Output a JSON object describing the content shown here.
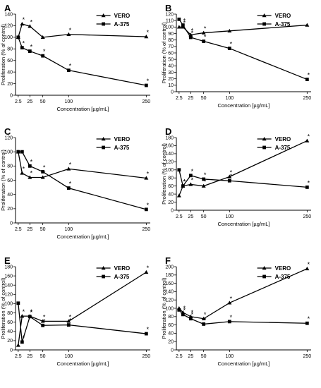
{
  "chart_data": [
    {
      "type": "line",
      "panel": "A",
      "xlabel": "Concentration [µg/mL]",
      "ylabel": "Proliferation (% of control)",
      "ylim": [
        0,
        140
      ],
      "yticks": [
        0,
        20,
        40,
        60,
        80,
        100,
        120,
        140
      ],
      "x": [
        2.5,
        10,
        25,
        50,
        100,
        250
      ],
      "xticks": [
        "2.5",
        "25",
        "50",
        "100",
        "250"
      ],
      "series": [
        {
          "name": "VERO",
          "marker": "triangle",
          "values": [
            100,
            123,
            119,
            100,
            105,
            101
          ],
          "stars": [
            false,
            true,
            true,
            false,
            true,
            true
          ]
        },
        {
          "name": "A-375",
          "marker": "square",
          "values": [
            100,
            82,
            76,
            68,
            43,
            17
          ],
          "stars": [
            false,
            true,
            true,
            true,
            true,
            true
          ]
        }
      ],
      "legend": "top-right"
    },
    {
      "type": "line",
      "panel": "B",
      "xlabel": "Concentration [µg/mL]",
      "ylabel": "Proliferation (% of control)",
      "ylim": [
        0,
        120
      ],
      "yticks": [
        0,
        10,
        20,
        30,
        40,
        50,
        60,
        70,
        80,
        90,
        100,
        110,
        120
      ],
      "x": [
        2.5,
        10,
        25,
        50,
        100,
        250
      ],
      "xticks": [
        "2.5",
        "25",
        "50",
        "100",
        "250"
      ],
      "series": [
        {
          "name": "VERO",
          "marker": "triangle",
          "values": [
            100,
            100,
            88,
            91,
            94,
            103
          ],
          "stars": [
            false,
            true,
            true,
            true,
            false,
            false
          ]
        },
        {
          "name": "A-375",
          "marker": "square",
          "values": [
            112,
            103,
            84,
            78,
            67,
            19
          ],
          "stars": [
            false,
            true,
            true,
            true,
            true,
            true
          ]
        }
      ],
      "legend": "top-right"
    },
    {
      "type": "line",
      "panel": "C",
      "xlabel": "Concentration [µg/mL]",
      "ylabel": "Proliferation (% of control)",
      "ylim": [
        0,
        120
      ],
      "yticks": [
        0,
        20,
        40,
        60,
        80,
        100,
        120
      ],
      "x": [
        2.5,
        10,
        25,
        50,
        100,
        250
      ],
      "xticks": [
        "2.5",
        "25",
        "50",
        "100",
        "250"
      ],
      "series": [
        {
          "name": "VERO",
          "marker": "triangle",
          "values": [
            100,
            70,
            64,
            64,
            76,
            63
          ],
          "stars": [
            false,
            true,
            true,
            true,
            true,
            true
          ]
        },
        {
          "name": "A-375",
          "marker": "square",
          "values": [
            100,
            100,
            80,
            72,
            49,
            19
          ],
          "stars": [
            false,
            false,
            true,
            true,
            true,
            true
          ]
        }
      ],
      "legend": "top-right"
    },
    {
      "type": "line",
      "panel": "D",
      "xlabel": "Concentration [µg/mL]",
      "ylabel": "Proliferation (% of control)",
      "ylim": [
        0,
        180
      ],
      "yticks": [
        0,
        20,
        40,
        60,
        80,
        100,
        120,
        140,
        160,
        180
      ],
      "x": [
        2.5,
        10,
        25,
        50,
        100,
        250
      ],
      "xticks": [
        "2.5",
        "25",
        "50",
        "100",
        "250"
      ],
      "series": [
        {
          "name": "VERO",
          "marker": "triangle",
          "values": [
            36,
            60,
            64,
            60,
            83,
            172
          ],
          "stars": [
            false,
            true,
            true,
            true,
            true,
            true
          ]
        },
        {
          "name": "A-375",
          "marker": "square",
          "values": [
            100,
            60,
            86,
            77,
            73,
            57
          ],
          "stars": [
            false,
            true,
            true,
            true,
            true,
            true
          ]
        }
      ],
      "legend": "top-right"
    },
    {
      "type": "line",
      "panel": "E",
      "xlabel": "Concentration [µg/mL]",
      "ylabel": "Proliferation (% of control)",
      "ylim": [
        0,
        180
      ],
      "yticks": [
        0,
        20,
        40,
        60,
        80,
        100,
        120,
        140,
        160,
        180
      ],
      "x": [
        2.5,
        10,
        25,
        50,
        100,
        250
      ],
      "xticks": [
        "2.5",
        "25",
        "50",
        "100",
        "250"
      ],
      "series": [
        {
          "name": "VERO",
          "marker": "triangle",
          "values": [
            10,
            73,
            73,
            62,
            62,
            168
          ],
          "stars": [
            false,
            true,
            true,
            true,
            true,
            true
          ]
        },
        {
          "name": "A-375",
          "marker": "square",
          "values": [
            101,
            17,
            72,
            53,
            54,
            35
          ],
          "stars": [
            false,
            true,
            true,
            true,
            true,
            true
          ]
        }
      ],
      "legend": "top-right"
    },
    {
      "type": "line",
      "panel": "F",
      "xlabel": "Concentration [µg/mL]",
      "ylabel": "Proliferation (% of control)",
      "ylim": [
        0,
        200
      ],
      "yticks": [
        0,
        20,
        40,
        60,
        80,
        100,
        120,
        140,
        160,
        180,
        200
      ],
      "x": [
        2.5,
        10,
        25,
        50,
        100,
        250
      ],
      "xticks": [
        "2.5",
        "25",
        "50",
        "100",
        "250"
      ],
      "series": [
        {
          "name": "VERO",
          "marker": "triangle",
          "values": [
            100,
            90,
            80,
            75,
            113,
            195
          ],
          "stars": [
            false,
            true,
            true,
            true,
            true,
            true
          ]
        },
        {
          "name": "A-375",
          "marker": "square",
          "values": [
            96,
            85,
            75,
            62,
            68,
            64
          ],
          "stars": [
            false,
            true,
            true,
            true,
            true,
            true
          ]
        }
      ],
      "legend": "top-right"
    }
  ]
}
